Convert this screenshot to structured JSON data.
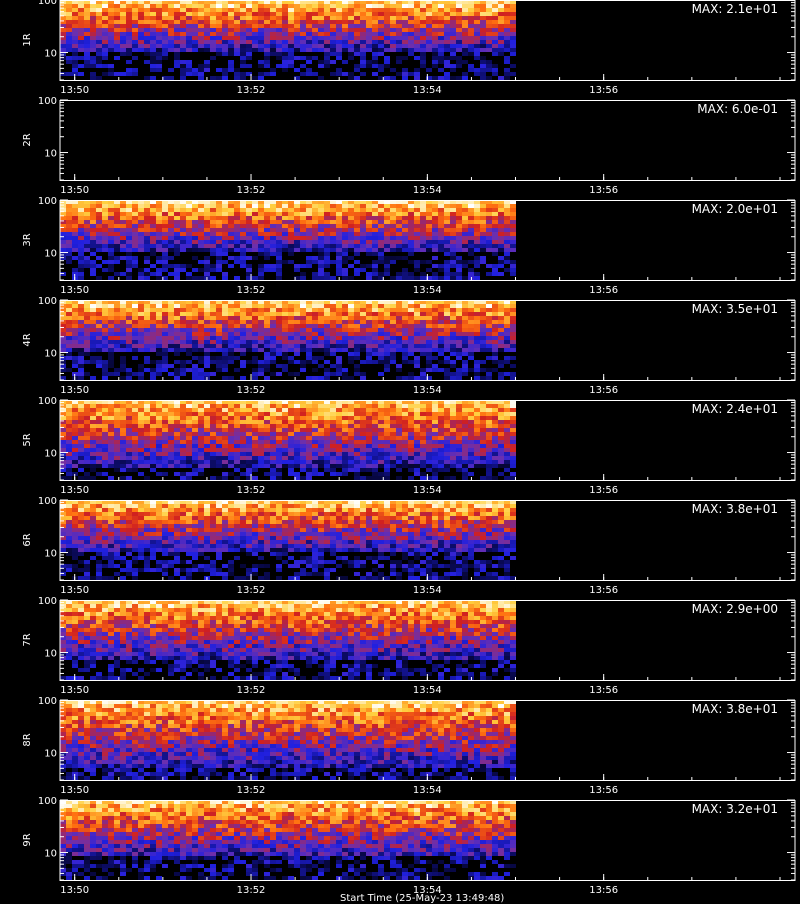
{
  "chart_data": [
    {
      "type": "heatmap",
      "ylabel": "1R",
      "max_label": "MAX: 2.1e+01",
      "yticks": [
        "100",
        "10"
      ],
      "xticks": [
        "13:50",
        "13:52",
        "13:54",
        "13:56"
      ],
      "x_range": [
        "13:49:50",
        "13:58:00"
      ],
      "data_end": "13:55:00",
      "y_range": [
        3,
        100
      ],
      "y_scale": "log",
      "band": {
        "low": 12,
        "high": 85
      },
      "max_value": 21
    },
    {
      "type": "heatmap",
      "ylabel": "2R",
      "max_label": "MAX: 6.0e-01",
      "yticks": [
        "100",
        "10"
      ],
      "xticks": [
        "13:50",
        "13:52",
        "13:54",
        "13:56"
      ],
      "x_range": [
        "13:49:50",
        "13:58:00"
      ],
      "data_end": "",
      "y_range": [
        3,
        100
      ],
      "y_scale": "log",
      "band": {
        "low": 0,
        "high": 0
      },
      "max_value": 0.6
    },
    {
      "type": "heatmap",
      "ylabel": "3R",
      "max_label": "MAX: 2.0e+01",
      "yticks": [
        "100",
        "10"
      ],
      "xticks": [
        "13:50",
        "13:52",
        "13:54",
        "13:56"
      ],
      "x_range": [
        "13:49:50",
        "13:58:00"
      ],
      "data_end": "13:55:00",
      "y_range": [
        3,
        100
      ],
      "y_scale": "log",
      "band": {
        "low": 12,
        "high": 90
      },
      "max_value": 20
    },
    {
      "type": "heatmap",
      "ylabel": "4R",
      "max_label": "MAX: 3.5e+01",
      "yticks": [
        "100",
        "10"
      ],
      "xticks": [
        "13:50",
        "13:52",
        "13:54",
        "13:56"
      ],
      "x_range": [
        "13:49:50",
        "13:58:00"
      ],
      "data_end": "13:55:00",
      "y_range": [
        3,
        100
      ],
      "y_scale": "log",
      "band": {
        "low": 12,
        "high": 90
      },
      "max_value": 35
    },
    {
      "type": "heatmap",
      "ylabel": "5R",
      "max_label": "MAX: 2.4e+01",
      "yticks": [
        "100",
        "10"
      ],
      "xticks": [
        "13:50",
        "13:52",
        "13:54",
        "13:56"
      ],
      "x_range": [
        "13:49:50",
        "13:58:00"
      ],
      "data_end": "13:55:00",
      "y_range": [
        3,
        100
      ],
      "y_scale": "log",
      "band": {
        "low": 6,
        "high": 95
      },
      "max_value": 24
    },
    {
      "type": "heatmap",
      "ylabel": "6R",
      "max_label": "MAX: 3.8e+01",
      "yticks": [
        "100",
        "10"
      ],
      "xticks": [
        "13:50",
        "13:52",
        "13:54",
        "13:56"
      ],
      "x_range": [
        "13:49:50",
        "13:58:00"
      ],
      "data_end": "13:55:00",
      "y_range": [
        3,
        100
      ],
      "y_scale": "log",
      "band": {
        "low": 12,
        "high": 95
      },
      "max_value": 38
    },
    {
      "type": "heatmap",
      "ylabel": "7R",
      "max_label": "MAX: 2.9e+00",
      "yticks": [
        "100",
        "10"
      ],
      "xticks": [
        "13:50",
        "13:52",
        "13:54",
        "13:56"
      ],
      "x_range": [
        "13:49:50",
        "13:58:00"
      ],
      "data_end": "13:55:00",
      "y_range": [
        3,
        100
      ],
      "y_scale": "log",
      "band": {
        "low": 8,
        "high": 95
      },
      "max_value": 2.9
    },
    {
      "type": "heatmap",
      "ylabel": "8R",
      "max_label": "MAX: 3.8e+01",
      "yticks": [
        "100",
        "10"
      ],
      "xticks": [
        "13:50",
        "13:52",
        "13:54",
        "13:56"
      ],
      "x_range": [
        "13:49:50",
        "13:58:00"
      ],
      "data_end": "13:55:00",
      "y_range": [
        3,
        100
      ],
      "y_scale": "log",
      "band": {
        "low": 6,
        "high": 95
      },
      "max_value": 38
    },
    {
      "type": "heatmap",
      "ylabel": "9R",
      "max_label": "MAX: 3.2e+01",
      "yticks": [
        "100",
        "10"
      ],
      "xticks": [
        "13:50",
        "13:52",
        "13:54",
        "13:56"
      ],
      "x_range": [
        "13:49:50",
        "13:58:00"
      ],
      "data_end": "13:55:00",
      "y_range": [
        3,
        100
      ],
      "y_scale": "log",
      "band": {
        "low": 9,
        "high": 95
      },
      "max_value": 32
    }
  ],
  "footer": {
    "caption": "Start Time (25-May-23 13:49:48)"
  },
  "colors": {
    "background": "#000000",
    "axes": "#ffffff",
    "scale": [
      "#000000",
      "#0a0a5a",
      "#2020e0",
      "#6a2fb0",
      "#d02020",
      "#ff7010",
      "#ffd040",
      "#ffffff"
    ]
  }
}
